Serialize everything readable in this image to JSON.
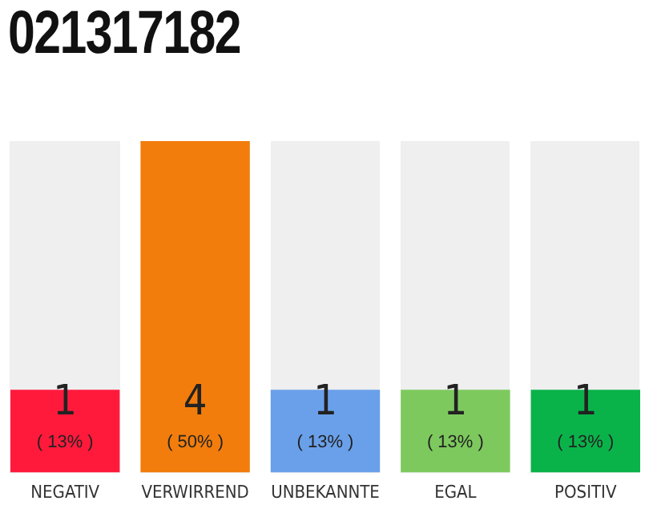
{
  "chart_data": {
    "type": "bar",
    "title": "021317182",
    "categories": [
      "NEGATIV",
      "VERWIRREND",
      "UNBEKANNTE",
      "EGAL",
      "POSITIV"
    ],
    "values": [
      1,
      4,
      1,
      1,
      1
    ],
    "colors": [
      "#ff1a3c",
      "#f27d0c",
      "#6aa0ea",
      "#7dc95e",
      "#0ab34a"
    ],
    "data_labels": true,
    "annotations": [
      "( 13% )",
      "( 50% )",
      "( 13% )",
      "( 13% )",
      "( 13% )"
    ],
    "grid": false,
    "legend": false
  }
}
